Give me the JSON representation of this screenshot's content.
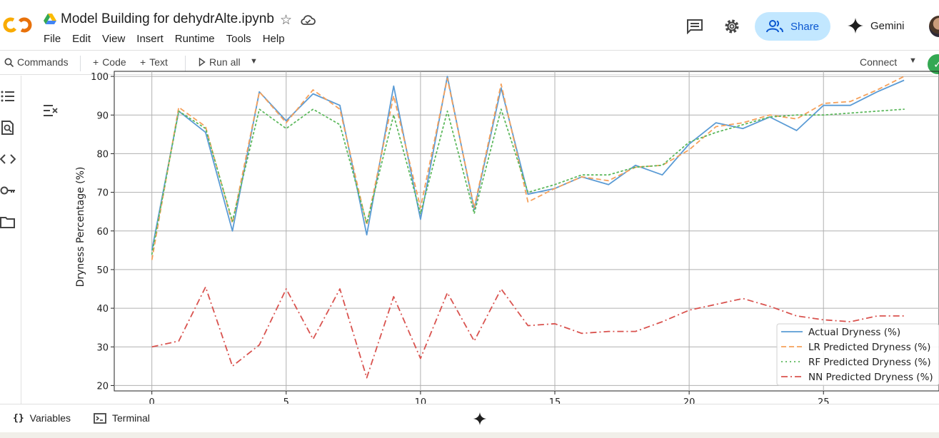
{
  "header": {
    "title": "Model Building for dehydrAlte.ipynb",
    "menu": [
      "File",
      "Edit",
      "View",
      "Insert",
      "Runtime",
      "Tools",
      "Help"
    ],
    "share_label": "Share",
    "gemini_label": "Gemini"
  },
  "toolbar": {
    "commands_label": "Commands",
    "code_label": "Code",
    "text_label": "Text",
    "run_all_label": "Run all",
    "connect_label": "Connect"
  },
  "bottombar": {
    "variables_label": "Variables",
    "terminal_label": "Terminal"
  },
  "colors": {
    "actual": "#5a9bd5",
    "lr": "#f5a05a",
    "rf": "#5cb85c",
    "nn": "#d9534f",
    "share_bg": "#c2e7ff",
    "accent": "#0b57d0"
  },
  "chart_data": {
    "type": "line",
    "title": "",
    "xlabel": "",
    "ylabel": "Dryness Percentage (%)",
    "xlim": [
      -1.4,
      29.3
    ],
    "ylim": [
      18.6,
      100.2
    ],
    "xticks": [
      0,
      5,
      10,
      15,
      20,
      25
    ],
    "yticks": [
      20,
      30,
      40,
      50,
      60,
      70,
      80,
      90,
      100
    ],
    "grid": true,
    "legend_position": "lower-right",
    "x": [
      0,
      1,
      2,
      3,
      4,
      5,
      6,
      7,
      8,
      9,
      10,
      11,
      12,
      13,
      14,
      15,
      16,
      17,
      18,
      19,
      20,
      21,
      22,
      23,
      24,
      25,
      26,
      27,
      28
    ],
    "series": [
      {
        "name": "Actual Dryness (%)",
        "style": "solid",
        "values": [
          55,
          91,
          85.5,
          60,
          96,
          88.5,
          95.5,
          92.5,
          59,
          97.5,
          63,
          100,
          65.5,
          97,
          69.5,
          71,
          74,
          72,
          77,
          74.5,
          82.5,
          88,
          86.5,
          89.5,
          86,
          92.5,
          92.5,
          96,
          99
        ]
      },
      {
        "name": "LR Predicted Dryness (%)",
        "style": "dashed",
        "values": [
          52.5,
          92,
          87,
          62,
          96,
          88,
          96.5,
          91.5,
          61.5,
          95,
          66,
          99.5,
          66,
          98,
          67.5,
          71,
          74,
          73,
          76.5,
          77,
          81,
          87,
          88,
          90,
          89,
          93,
          93.5,
          96.5,
          100
        ]
      },
      {
        "name": "RF Predicted Dryness (%)",
        "style": "dotted",
        "values": [
          54,
          91,
          86.5,
          62.5,
          91.5,
          86.5,
          91.5,
          87.5,
          62,
          90,
          64.5,
          91,
          64.5,
          91.5,
          70,
          72,
          74.5,
          74.5,
          76.5,
          77,
          83,
          85.5,
          87.5,
          89.5,
          90,
          90,
          90.5,
          91,
          91.5
        ]
      },
      {
        "name": "NN Predicted Dryness (%)",
        "style": "dashdot",
        "values": [
          30,
          31.5,
          45.5,
          25,
          30.5,
          45,
          32,
          45,
          22,
          43,
          27,
          44,
          31.5,
          45,
          35.5,
          36,
          33.5,
          34,
          34,
          36.5,
          39.5,
          41,
          42.5,
          40.5,
          38,
          37,
          36.5,
          38,
          38
        ]
      }
    ]
  }
}
